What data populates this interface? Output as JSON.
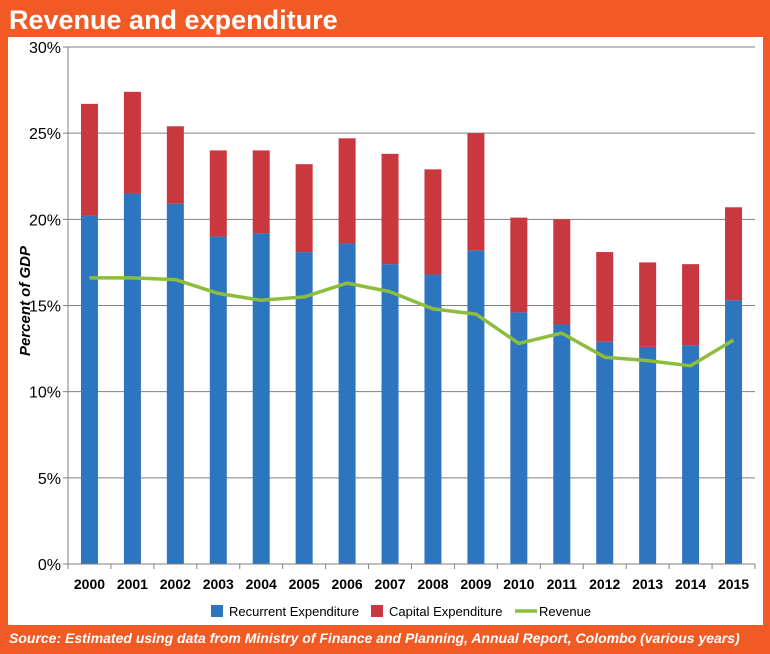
{
  "title": "Revenue and expenditure",
  "source": "Source: Estimated using data from Ministry of Finance and Planning, Annual Report, Colombo (various years)",
  "colors": {
    "frame": "#f15a24",
    "recurrent": "#2e75c0",
    "capital": "#c8383e",
    "revenue": "#8cbd3c"
  },
  "chart_data": {
    "type": "bar",
    "stacked": true,
    "ylabel": "Percent of GDP",
    "xlabel": "",
    "ylim": [
      0,
      30
    ],
    "yticks": [
      "0%",
      "5%",
      "10%",
      "15%",
      "20%",
      "25%",
      "30%"
    ],
    "grid": true,
    "legend_position": "bottom",
    "categories": [
      "2000",
      "2001",
      "2002",
      "2003",
      "2004",
      "2005",
      "2006",
      "2007",
      "2008",
      "2009",
      "2010",
      "2011",
      "2012",
      "2013",
      "2014",
      "2015"
    ],
    "series": [
      {
        "name": "Recurrent Expenditure",
        "type": "bar",
        "values": [
          20.2,
          21.5,
          20.9,
          19.0,
          19.2,
          18.1,
          18.6,
          17.4,
          16.8,
          18.2,
          14.6,
          13.9,
          12.9,
          12.6,
          12.7,
          15.3
        ]
      },
      {
        "name": "Capital Expenditure",
        "type": "bar",
        "values": [
          6.5,
          5.9,
          4.5,
          5.0,
          4.8,
          5.1,
          6.1,
          6.4,
          6.1,
          6.8,
          5.5,
          6.1,
          5.2,
          4.9,
          4.7,
          5.4
        ]
      },
      {
        "name": "Revenue",
        "type": "line",
        "values": [
          16.6,
          16.6,
          16.5,
          15.7,
          15.3,
          15.5,
          16.3,
          15.8,
          14.8,
          14.5,
          12.8,
          13.4,
          12.0,
          11.8,
          11.5,
          13.0
        ]
      }
    ]
  }
}
